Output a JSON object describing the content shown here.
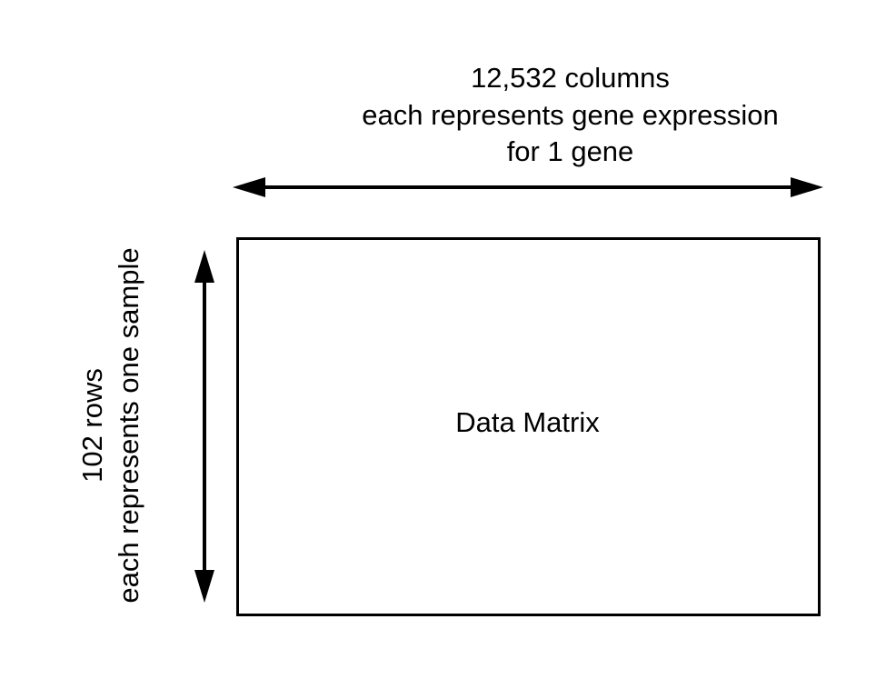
{
  "columns_label": {
    "line1": "12,532 columns",
    "line2": "each represents gene expression",
    "line3": "for 1 gene"
  },
  "rows_label": {
    "line1": "102 rows",
    "line2": "each represents one sample"
  },
  "matrix": {
    "label": "Data Matrix"
  }
}
